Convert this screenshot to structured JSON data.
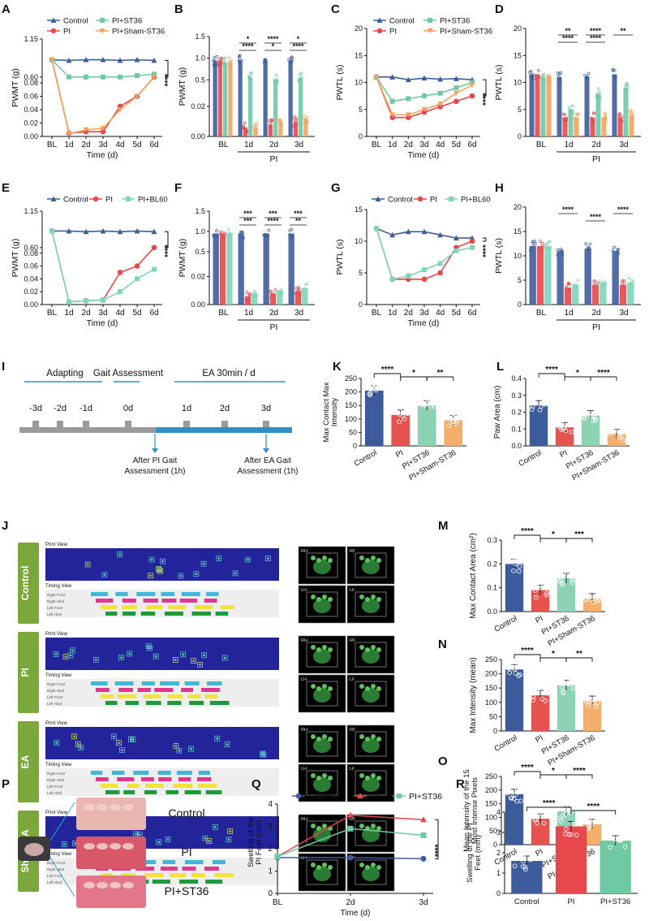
{
  "figure": {
    "panels": [
      "A",
      "B",
      "C",
      "D",
      "E",
      "F",
      "G",
      "H",
      "I",
      "J",
      "K",
      "L",
      "M",
      "N",
      "O",
      "P",
      "Q",
      "R"
    ]
  },
  "colors": {
    "control": "#3d5d9c",
    "pi": "#e8474b",
    "st36": "#6fc9a5",
    "sham": "#f3a35d",
    "bl60": "#7ed6b8",
    "gait_ctrl": "#3b5b9a",
    "gait_pi": "#e6534f",
    "gait_st36": "#8cd2b4",
    "gait_sham": "#f5ae6b",
    "print_bg": "#23239a",
    "timing_rf": "#41b6d6",
    "timing_rh": "#e0388f",
    "timing_lf": "#f2e23a",
    "timing_lh": "#1f9a3a",
    "label_green": "#7aa83a"
  },
  "chart_data": [
    {
      "panel": "A",
      "type": "line",
      "ylabel": "PWMT (g)",
      "xlabel": "Time (d)",
      "x": [
        "BL",
        "1d",
        "2d",
        "3d",
        "4d",
        "5d",
        "6d"
      ],
      "yticks": [
        "0.00",
        "0.02",
        "0.04",
        "0.06",
        "0.08",
        "0.60",
        "1.15"
      ],
      "series": [
        {
          "name": "Control",
          "values": [
            0.85,
            0.84,
            0.85,
            0.85,
            0.84,
            0.85,
            0.84
          ],
          "color": "control"
        },
        {
          "name": "PI",
          "values": [
            0.85,
            0.005,
            0.007,
            0.007,
            0.045,
            0.06,
            0.45
          ],
          "color": "pi"
        },
        {
          "name": "PI+ST36",
          "values": [
            0.85,
            0.55,
            0.55,
            0.57,
            0.6,
            0.62,
            0.64
          ],
          "color": "st36"
        },
        {
          "name": "PI+Sham-ST36",
          "values": [
            0.85,
            0.004,
            0.01,
            0.012,
            0.04,
            0.06,
            0.5
          ],
          "color": "sham"
        }
      ],
      "sig": "****"
    },
    {
      "panel": "B",
      "type": "bar",
      "ylabel": "PWMT (g)",
      "group_label": "PI",
      "categories": [
        "BL",
        "1d",
        "2d",
        "3d"
      ],
      "yticks": [
        "0.00",
        "0.02",
        "0.5",
        "1.0",
        "1.5"
      ],
      "series": [
        {
          "name": "Control",
          "values": [
            0.95,
            0.95,
            0.95,
            0.95
          ]
        },
        {
          "name": "PI",
          "values": [
            0.95,
            0.006,
            0.008,
            0.01
          ]
        },
        {
          "name": "PI+ST36",
          "values": [
            0.9,
            0.55,
            0.5,
            0.55
          ]
        },
        {
          "name": "PI+Sham-ST36",
          "values": [
            0.9,
            0.006,
            0.01,
            0.012
          ]
        }
      ],
      "sig": [
        [
          "*",
          "****"
        ],
        [
          "****",
          "*"
        ],
        [
          "*",
          "****"
        ]
      ]
    },
    {
      "panel": "C",
      "type": "line",
      "ylabel": "PWTL (s)",
      "xlabel": "Time (d)",
      "x": [
        "BL",
        "1d",
        "2d",
        "3d",
        "4d",
        "5d",
        "6d"
      ],
      "yticks": [
        "0",
        "5",
        "10",
        "15",
        "20"
      ],
      "series": [
        {
          "name": "Control",
          "values": [
            11,
            11,
            10.5,
            10.8,
            10.6,
            10.7,
            10.5
          ],
          "color": "control"
        },
        {
          "name": "PI",
          "values": [
            11,
            3.5,
            3.5,
            4.5,
            5.5,
            6.5,
            7.5
          ],
          "color": "pi"
        },
        {
          "name": "PI+ST36",
          "values": [
            11,
            6.5,
            7,
            7.5,
            8,
            9,
            10
          ],
          "color": "st36"
        },
        {
          "name": "PI+Sham-ST36",
          "values": [
            11,
            4,
            4,
            5,
            6,
            8,
            9.5
          ],
          "color": "sham"
        }
      ],
      "sig": "****"
    },
    {
      "panel": "D",
      "type": "bar",
      "ylabel": "PWTL (s)",
      "group_label": "PI",
      "categories": [
        "BL",
        "1d",
        "2d",
        "3d"
      ],
      "yticks": [
        "0",
        "5",
        "10",
        "15",
        "20"
      ],
      "series": [
        {
          "name": "Control",
          "values": [
            11.5,
            11,
            11,
            11.5
          ]
        },
        {
          "name": "PI",
          "values": [
            11.5,
            3.5,
            3.5,
            3.5
          ]
        },
        {
          "name": "PI+ST36",
          "values": [
            11,
            5,
            8,
            9
          ]
        },
        {
          "name": "PI+Sham-ST36",
          "values": [
            11,
            3.5,
            3.5,
            4
          ]
        }
      ],
      "sig": [
        "**",
        "****",
        "****",
        "****",
        "**"
      ]
    },
    {
      "panel": "E",
      "type": "line",
      "ylabel": "PWMT (g)",
      "xlabel": "Time (d)",
      "x": [
        "BL",
        "1d",
        "2d",
        "3d",
        "4d",
        "5d",
        "6d"
      ],
      "yticks": [
        "0.00",
        "0.02",
        "0.04",
        "0.06",
        "0.08",
        "0.60",
        "1.15"
      ],
      "series": [
        {
          "name": "Control",
          "values": [
            0.85,
            0.85,
            0.84,
            0.85,
            0.84,
            0.85,
            0.84
          ],
          "color": "control"
        },
        {
          "name": "PI",
          "values": [
            0.85,
            0.004,
            0.006,
            0.007,
            0.05,
            0.06,
            0.6
          ],
          "color": "pi"
        },
        {
          "name": "PI+BL60",
          "values": [
            0.85,
            0.004,
            0.006,
            0.007,
            0.02,
            0.04,
            0.055
          ],
          "color": "bl60"
        }
      ],
      "sig": "****"
    },
    {
      "panel": "F",
      "type": "bar",
      "ylabel": "PWMT (g)",
      "group_label": "PI",
      "categories": [
        "BL",
        "1d",
        "2d",
        "3d"
      ],
      "yticks": [
        "0.00",
        "0.02",
        "0.5",
        "1.0",
        "1.5"
      ],
      "series": [
        {
          "name": "Control",
          "values": [
            0.95,
            0.95,
            0.95,
            0.95
          ]
        },
        {
          "name": "PI",
          "values": [
            0.95,
            0.006,
            0.008,
            0.01
          ]
        },
        {
          "name": "PI+BL60",
          "values": [
            0.95,
            0.008,
            0.01,
            0.012
          ]
        }
      ],
      "sig": [
        "***",
        "***",
        "***",
        "****",
        "***",
        "**"
      ]
    },
    {
      "panel": "G",
      "type": "line",
      "ylabel": "PWTL (s)",
      "xlabel": "Time (d)",
      "x": [
        "BL",
        "1d",
        "2d",
        "3d",
        "4d",
        "5d",
        "6d"
      ],
      "yticks": [
        "0",
        "5",
        "10",
        "15"
      ],
      "series": [
        {
          "name": "Control",
          "values": [
            12,
            11,
            11.5,
            11.5,
            11,
            10.5,
            10.5
          ],
          "color": "control"
        },
        {
          "name": "PI",
          "values": [
            12,
            4,
            4,
            4,
            5,
            9,
            10
          ],
          "color": "pi"
        },
        {
          "name": "PI+BL60",
          "values": [
            12,
            4,
            4.5,
            5.5,
            6.5,
            8.5,
            9
          ],
          "color": "bl60"
        }
      ],
      "sig": "****"
    },
    {
      "panel": "H",
      "type": "bar",
      "ylabel": "PWTL (s)",
      "group_label": "PI",
      "categories": [
        "BL",
        "1d",
        "2d",
        "3d"
      ],
      "yticks": [
        "0",
        "5",
        "10",
        "15",
        "20"
      ],
      "series": [
        {
          "name": "Control",
          "values": [
            12,
            11,
            11.5,
            11
          ]
        },
        {
          "name": "PI",
          "values": [
            12,
            3.5,
            4,
            4
          ]
        },
        {
          "name": "PI+BL60",
          "values": [
            12,
            4,
            4.5,
            4.5
          ]
        }
      ],
      "sig": [
        "****",
        "****",
        "****"
      ]
    },
    {
      "panel": "K",
      "type": "bar",
      "ylabel": "Max Contact Max Intensity",
      "categories": [
        "Control",
        "PI",
        "PI+ST36",
        "PI+Sham-ST36"
      ],
      "values": [
        205,
        115,
        150,
        95
      ],
      "ylim": [
        0,
        250
      ],
      "yticks": [
        "0",
        "50",
        "100",
        "150",
        "200",
        "250"
      ],
      "sig": [
        "****",
        "*",
        "**"
      ]
    },
    {
      "panel": "L",
      "type": "bar",
      "ylabel": "Paw Area (cm)",
      "categories": [
        "Control",
        "PI",
        "PI+ST36",
        "PI+Sham-ST36"
      ],
      "values": [
        0.24,
        0.11,
        0.18,
        0.07
      ],
      "ylim": [
        0,
        0.4
      ],
      "yticks": [
        "0.0",
        "0.1",
        "0.2",
        "0.3",
        "0.4"
      ],
      "sig": [
        "****",
        "*",
        "****"
      ]
    },
    {
      "panel": "M",
      "type": "bar",
      "ylabel": "Max Contact Area (cm²)",
      "categories": [
        "Control",
        "PI",
        "PI+ST36",
        "PI+Sham-ST36"
      ],
      "values": [
        0.2,
        0.09,
        0.14,
        0.055
      ],
      "ylim": [
        0,
        0.3
      ],
      "yticks": [
        "0.0",
        "0.1",
        "0.2",
        "0.3"
      ],
      "sig": [
        "****",
        "*",
        "***"
      ]
    },
    {
      "panel": "N",
      "type": "bar",
      "ylabel": "Max Intensity (mean)",
      "categories": [
        "Control",
        "PI",
        "PI+ST36",
        "PI+Sham-ST36"
      ],
      "values": [
        215,
        125,
        160,
        105
      ],
      "ylim": [
        0,
        250
      ],
      "yticks": [
        "0",
        "50",
        "100",
        "150",
        "200",
        "250"
      ],
      "sig": [
        "****",
        "*",
        "**"
      ]
    },
    {
      "panel": "O",
      "type": "bar",
      "ylabel": "Mean Intensity of the 15 Most Intense Pixels",
      "categories": [
        "Control",
        "PI",
        "PI+ST36",
        "PI+Sham-ST36"
      ],
      "values": [
        185,
        95,
        122,
        75
      ],
      "ylim": [
        0,
        250
      ],
      "yticks": [
        "0",
        "50",
        "100",
        "150",
        "200",
        "250"
      ],
      "sig": [
        "****",
        "*",
        "****"
      ]
    },
    {
      "panel": "Q",
      "type": "line",
      "ylabel": "Swelling of the PI Feet (mm)",
      "xlabel": "Time (d)",
      "x": [
        "BL",
        "2d",
        "3d"
      ],
      "ylim": [
        0,
        4
      ],
      "yticks": [
        "0",
        "1",
        "2",
        "3",
        "4"
      ],
      "series": [
        {
          "name": "Control",
          "values": [
            1.6,
            1.6,
            1.55
          ],
          "color": "control"
        },
        {
          "name": "PI",
          "values": [
            1.65,
            3.5,
            3.3
          ],
          "color": "pi"
        },
        {
          "name": "PI+ST36",
          "values": [
            1.65,
            2.9,
            2.6
          ],
          "color": "st36"
        }
      ],
      "sig": "****"
    },
    {
      "panel": "R",
      "type": "bar",
      "ylabel": "Swelling of the PI Feet (mm)",
      "categories": [
        "Control",
        "PI",
        "PI+ST36"
      ],
      "values": [
        1.6,
        3.3,
        2.6
      ],
      "ylim": [
        0,
        4
      ],
      "yticks": [
        "0",
        "1",
        "2",
        "3",
        "4"
      ],
      "sig": [
        "****",
        "****"
      ]
    }
  ],
  "timeline": {
    "phases": [
      "Adapting",
      "Gait Assessment",
      "EA 30min / d"
    ],
    "days": [
      "-3d",
      "-2d",
      "-1d",
      "0d",
      "1d",
      "2d",
      "3d"
    ],
    "notes": [
      "After PI Gait Assessment (1h)",
      "After EA Gait Assessment (1h)"
    ]
  },
  "gait": {
    "print_view": "Print View",
    "timing_view": "Timing View",
    "timing_rows": [
      "Right Front",
      "Right Hind",
      "Left Front",
      "Left Hind"
    ],
    "paw_labels": [
      "RH",
      "RF",
      "LH",
      "LF"
    ],
    "groups": [
      "Control",
      "PI",
      "EA",
      "Sham-EA"
    ]
  },
  "photos": {
    "labels": [
      "Control",
      "PI",
      "PI+ST36"
    ]
  }
}
